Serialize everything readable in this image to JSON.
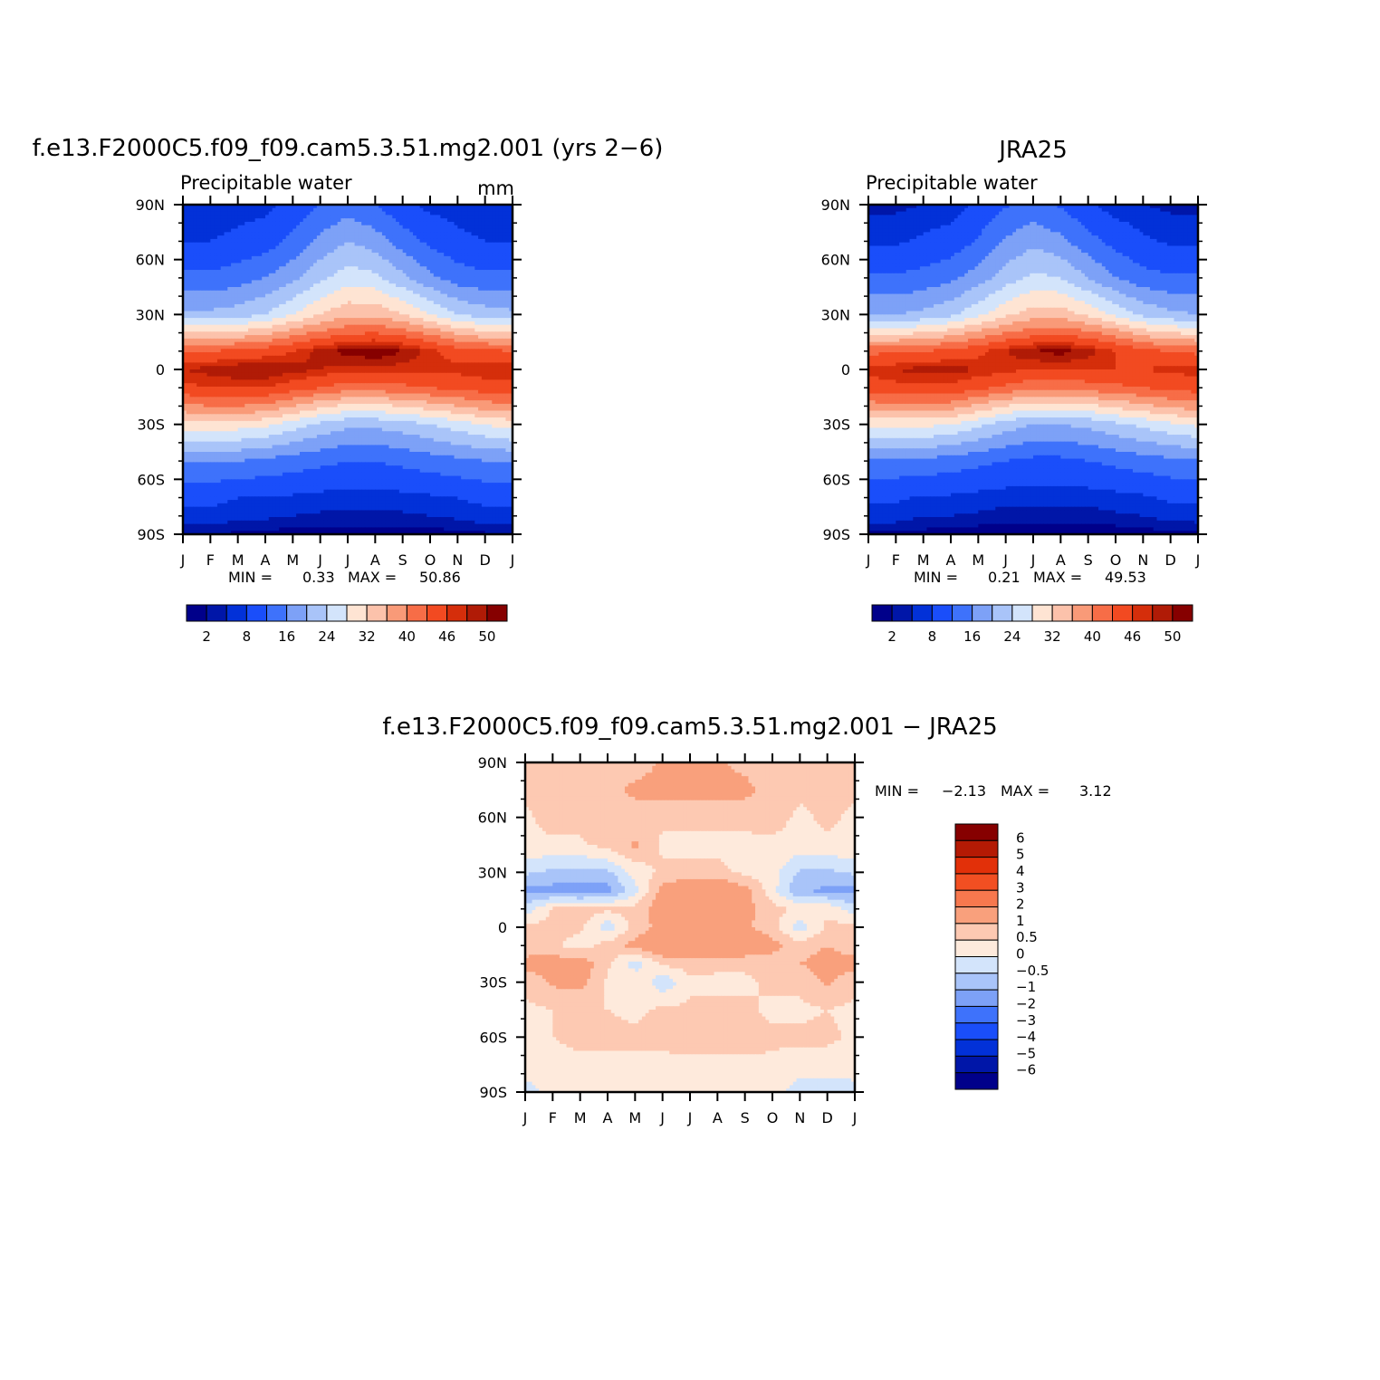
{
  "colors": {
    "abs_scale": [
      "#00008a",
      "#0016a8",
      "#0231d8",
      "#1a4efa",
      "#3e72fb",
      "#7da1f7",
      "#a9c4f9",
      "#d3e4fb",
      "#fee4d3",
      "#fcc2ab",
      "#f99a78",
      "#f76d47",
      "#f24a21",
      "#d52e0b",
      "#b01b06",
      "#860000"
    ],
    "diff_scale": [
      "#00008a",
      "#0016a8",
      "#0231d8",
      "#1a4efa",
      "#3e72fb",
      "#7da1f7",
      "#a9c4f9",
      "#d3e4fb",
      "#ffffff",
      "#feeadc",
      "#fdc9b2",
      "#f9a07c",
      "#f7784e",
      "#f24f22",
      "#e23009",
      "#b41a04",
      "#860000"
    ]
  },
  "chart_data": [
    {
      "type": "heatmap",
      "title": "f.e13.F2000C5.f09_f09.cam5.3.51.mg2.001 (yrs 2−6)",
      "subtitle_left": "Precipitable water",
      "subtitle_right": "mm",
      "x_tick_labels": [
        "J",
        "F",
        "M",
        "A",
        "M",
        "J",
        "J",
        "A",
        "S",
        "O",
        "N",
        "D",
        "J"
      ],
      "y_tick_labels": [
        "90N",
        "60N",
        "30N",
        "0",
        "30S",
        "60S",
        "90S"
      ],
      "ylim": [
        -90,
        90
      ],
      "stats": {
        "min_label": "MIN =",
        "min": "0.33",
        "max_label": "MAX =",
        "max": "50.86"
      },
      "colorbar_labels": [
        "2",
        "8",
        "16",
        "24",
        "32",
        "40",
        "46",
        "50"
      ],
      "latitudes": [
        90,
        70,
        50,
        30,
        20,
        10,
        0,
        -10,
        -20,
        -30,
        -50,
        -70,
        -90
      ],
      "months": [
        "J",
        "F",
        "M",
        "A",
        "M",
        "J",
        "J",
        "A",
        "S",
        "O",
        "N",
        "D",
        "J"
      ],
      "values": [
        [
          2,
          2,
          2.5,
          3,
          5,
          8,
          10,
          8,
          5,
          3,
          2.5,
          2,
          2
        ],
        [
          4,
          4,
          5,
          6,
          9,
          13,
          16,
          14,
          10,
          7,
          5,
          4,
          4
        ],
        [
          9,
          9,
          10,
          12,
          15,
          19,
          22,
          21,
          17,
          13,
          10,
          9,
          9
        ],
        [
          17,
          17,
          18,
          20,
          24,
          28,
          31,
          31,
          28,
          24,
          20,
          18,
          17
        ],
        [
          28,
          28,
          29,
          31,
          34,
          37,
          39,
          40,
          38,
          35,
          31,
          29,
          28
        ],
        [
          40,
          40,
          41,
          42,
          44,
          47,
          49,
          50,
          48,
          45,
          42,
          41,
          40
        ],
        [
          46,
          47,
          48,
          48,
          47,
          46,
          45,
          45,
          45,
          45,
          45,
          46,
          46
        ],
        [
          43,
          44,
          44,
          44,
          42,
          40,
          38,
          38,
          39,
          40,
          41,
          42,
          43
        ],
        [
          35,
          36,
          36,
          35,
          32,
          29,
          27,
          27,
          28,
          30,
          32,
          34,
          35
        ],
        [
          26,
          26,
          26,
          25,
          22,
          19,
          17,
          17,
          18,
          20,
          22,
          24,
          26
        ],
        [
          12,
          12,
          12,
          11,
          10,
          9,
          8,
          8,
          9,
          10,
          11,
          12,
          12
        ],
        [
          5,
          5,
          4,
          4,
          3.5,
          3,
          3,
          3,
          3,
          3.5,
          4,
          5,
          5
        ],
        [
          1,
          1,
          0.8,
          0.6,
          0.5,
          0.4,
          0.4,
          0.4,
          0.4,
          0.5,
          0.6,
          0.8,
          1
        ]
      ]
    },
    {
      "type": "heatmap",
      "title": "JRA25",
      "subtitle_left": "Precipitable water",
      "x_tick_labels": [
        "J",
        "F",
        "M",
        "A",
        "M",
        "J",
        "J",
        "A",
        "S",
        "O",
        "N",
        "D",
        "J"
      ],
      "y_tick_labels": [
        "90N",
        "60N",
        "30N",
        "0",
        "30S",
        "60S",
        "90S"
      ],
      "ylim": [
        -90,
        90
      ],
      "stats": {
        "min_label": "MIN =",
        "min": "0.21",
        "max_label": "MAX =",
        "max": "49.53"
      },
      "colorbar_labels": [
        "2",
        "8",
        "16",
        "24",
        "32",
        "40",
        "46",
        "50"
      ],
      "latitudes": [
        90,
        70,
        50,
        30,
        20,
        10,
        0,
        -10,
        -20,
        -30,
        -50,
        -70,
        -90
      ],
      "months": [
        "J",
        "F",
        "M",
        "A",
        "M",
        "J",
        "J",
        "A",
        "S",
        "O",
        "N",
        "D",
        "J"
      ],
      "values": [
        [
          1.5,
          1.5,
          2,
          2.5,
          4.5,
          7.5,
          9.5,
          7.5,
          4.5,
          2.5,
          2,
          1.5,
          1.5
        ],
        [
          3.5,
          3.5,
          4.5,
          5.5,
          8.5,
          12.5,
          15,
          13,
          9.5,
          6.5,
          4.5,
          3.5,
          3.5
        ],
        [
          8.5,
          8.5,
          9.5,
          11,
          14,
          18,
          21,
          20,
          16,
          12,
          9.5,
          8.5,
          8.5
        ],
        [
          16,
          16,
          17,
          19,
          23,
          27,
          30,
          30,
          27,
          23,
          19,
          17,
          16
        ],
        [
          27,
          27,
          28,
          30,
          33,
          36,
          38,
          39,
          37,
          34,
          30,
          28,
          27
        ],
        [
          39,
          39,
          40,
          41,
          43,
          46,
          48,
          49,
          47,
          44,
          41,
          40,
          39
        ],
        [
          45,
          46,
          47,
          47,
          46,
          45,
          44,
          44,
          44,
          44,
          44,
          45,
          45
        ],
        [
          42,
          43,
          43,
          43,
          41,
          39,
          37,
          37,
          38,
          39,
          40,
          41,
          42
        ],
        [
          34,
          35,
          35,
          34,
          31,
          28,
          26,
          26,
          27,
          29,
          31,
          33,
          34
        ],
        [
          25,
          25,
          25,
          24,
          21,
          18,
          16,
          16,
          17,
          19,
          21,
          23,
          25
        ],
        [
          11,
          11,
          11,
          10,
          9,
          8,
          7,
          7,
          8,
          9,
          10,
          11,
          11
        ],
        [
          4.5,
          4.5,
          3.5,
          3.5,
          3,
          2.5,
          2.5,
          2.5,
          2.5,
          3,
          3.5,
          4.5,
          4.5
        ],
        [
          0.8,
          0.8,
          0.6,
          0.5,
          0.4,
          0.3,
          0.3,
          0.3,
          0.3,
          0.4,
          0.5,
          0.6,
          0.8
        ]
      ]
    },
    {
      "type": "heatmap",
      "title": "f.e13.F2000C5.f09_f09.cam5.3.51.mg2.001 − JRA25",
      "x_tick_labels": [
        "J",
        "F",
        "M",
        "A",
        "M",
        "J",
        "J",
        "A",
        "S",
        "O",
        "N",
        "D",
        "J"
      ],
      "y_tick_labels": [
        "90N",
        "60N",
        "30N",
        "0",
        "30S",
        "60S",
        "90S"
      ],
      "ylim": [
        -90,
        90
      ],
      "stats": {
        "min_label": "MIN =",
        "min": "−2.13",
        "max_label": "MAX =",
        "max": "3.12"
      },
      "colorbar_labels": [
        "6",
        "5",
        "4",
        "3",
        "2",
        "1",
        "0.5",
        "0",
        "−0.5",
        "−1",
        "−2",
        "−3",
        "−4",
        "−5",
        "−6"
      ],
      "latitudes": [
        90,
        75,
        60,
        45,
        30,
        20,
        10,
        0,
        -10,
        -20,
        -30,
        -45,
        -60,
        -75,
        -90
      ],
      "months": [
        "J",
        "F",
        "M",
        "A",
        "M",
        "J",
        "J",
        "A",
        "S",
        "O",
        "N",
        "D",
        "J"
      ],
      "values": [
        [
          0.6,
          0.6,
          0.6,
          0.6,
          0.6,
          1.1,
          1.2,
          1.1,
          0.8,
          0.6,
          0.6,
          0.6,
          0.6
        ],
        [
          0.6,
          0.7,
          0.7,
          0.7,
          1.2,
          1.3,
          1.3,
          1.2,
          1.2,
          0.7,
          0.6,
          0.6,
          0.6
        ],
        [
          0.4,
          0.7,
          0.7,
          0.7,
          0.6,
          0.6,
          0.6,
          0.6,
          0.6,
          0.7,
          0.4,
          0.6,
          0.4
        ],
        [
          0.4,
          0.4,
          0.4,
          0.7,
          1.1,
          0.4,
          0.4,
          0.4,
          0.4,
          0.4,
          0.3,
          0.4,
          0.4
        ],
        [
          -0.4,
          -0.6,
          -0.6,
          -0.6,
          0.2,
          0.6,
          0.6,
          0.6,
          0.4,
          0.2,
          -0.6,
          -0.6,
          -0.4
        ],
        [
          -1.2,
          -1.2,
          -1.4,
          -1.2,
          -0.2,
          1.2,
          1.7,
          1.7,
          1.2,
          0.2,
          -1.0,
          -1.1,
          -1.2
        ],
        [
          -0.3,
          0.6,
          0.8,
          0.6,
          0.7,
          1.4,
          1.6,
          1.5,
          1.2,
          0.7,
          0.4,
          0.4,
          -0.3
        ],
        [
          0.7,
          0.6,
          0.6,
          -0.3,
          0.7,
          1.2,
          1.3,
          1.2,
          1.1,
          0.7,
          -0.3,
          0.6,
          0.7
        ],
        [
          0.7,
          0.6,
          0.3,
          0.7,
          1.2,
          1.6,
          1.7,
          1.8,
          1.6,
          1.2,
          0.7,
          1.0,
          0.7
        ],
        [
          1.2,
          1.3,
          1.4,
          0.6,
          -0.3,
          0.6,
          0.7,
          0.6,
          0.6,
          0.7,
          1.0,
          1.3,
          1.2
        ],
        [
          0.6,
          1.1,
          1.2,
          0.4,
          0.5,
          -0.4,
          0.4,
          0.4,
          0.4,
          0.6,
          0.6,
          1.1,
          0.6
        ],
        [
          0.4,
          0.5,
          0.5,
          0.5,
          0.4,
          0.6,
          0.6,
          0.6,
          0.6,
          0.4,
          0.4,
          0.5,
          0.4
        ],
        [
          0.4,
          0.5,
          0.6,
          0.6,
          0.6,
          0.6,
          0.7,
          0.7,
          0.7,
          0.6,
          0.6,
          0.6,
          0.4
        ],
        [
          0.4,
          0.4,
          0.4,
          0.4,
          0.4,
          0.4,
          0.4,
          0.4,
          0.4,
          0.4,
          0.3,
          0.3,
          0.4
        ],
        [
          -0.3,
          0.3,
          0.3,
          0.3,
          0.3,
          0.3,
          0.3,
          0.3,
          0.3,
          0.3,
          -0.3,
          -0.3,
          -0.3
        ]
      ]
    }
  ]
}
